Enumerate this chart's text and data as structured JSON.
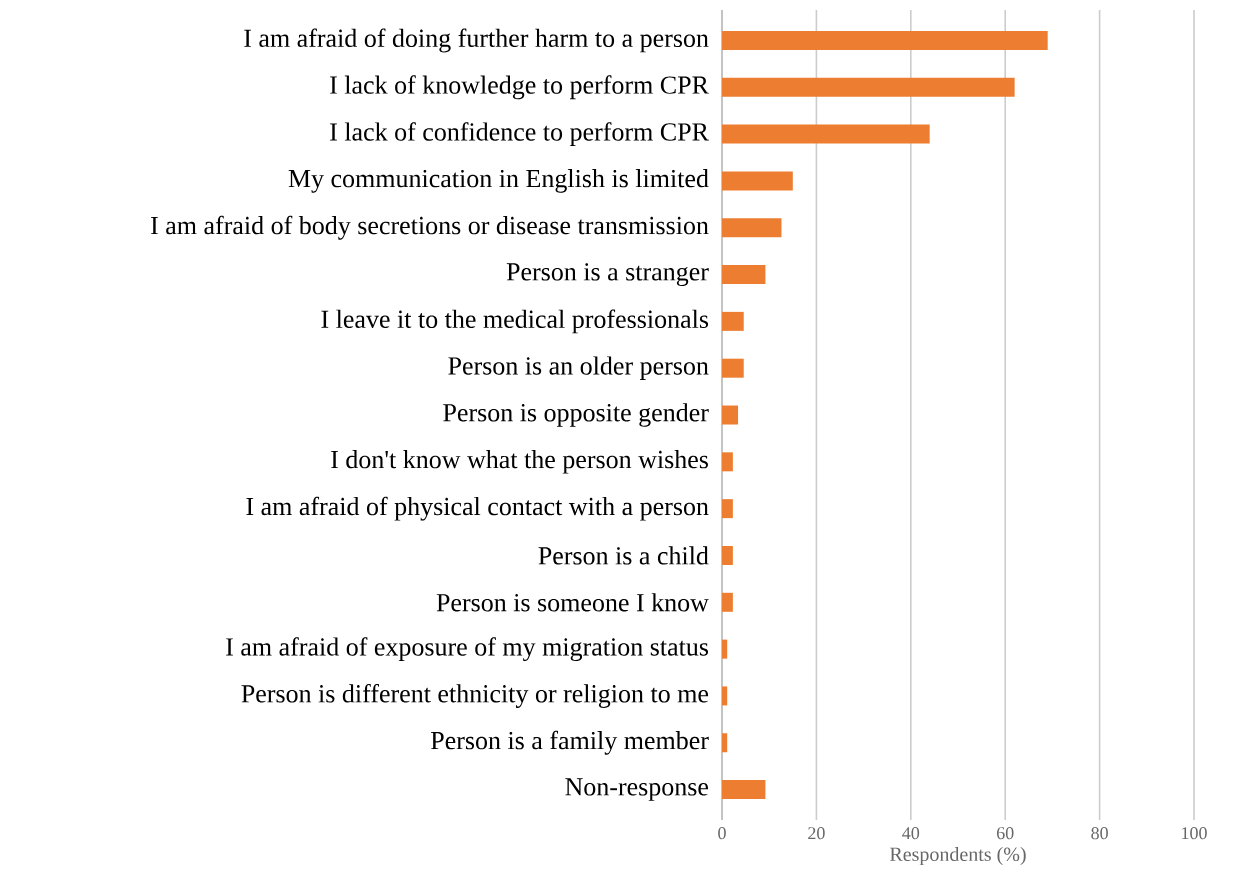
{
  "chart_data": {
    "type": "bar",
    "orientation": "horizontal",
    "xlabel": "Respondents (%)",
    "categories": [
      "I am afraid of doing further harm to a person",
      "I lack of knowledge to perform CPR",
      "I lack of confidence to perform CPR",
      "My communication in English is limited",
      "I am afraid of body secretions or disease transmission",
      "Person is  a stranger",
      "I leave it to the medical professionals",
      "Person is an older person",
      "Person is opposite gender",
      "I don't know what the person wishes",
      "I am afraid of physical contact with a person",
      "Person is a child",
      "Person is someone I know",
      "I am afraid of exposure of my migration status",
      "Person is different ethnicity or religion to me",
      "Person is a family member",
      "Non-response"
    ],
    "values": [
      69,
      62,
      44,
      15,
      12.6,
      9.2,
      4.6,
      4.6,
      3.4,
      2.3,
      2.3,
      2.3,
      2.3,
      1.1,
      1.1,
      1.1,
      9.2
    ],
    "color": "#ed7d31",
    "xlim": [
      0,
      100
    ],
    "xticks": [
      0,
      20,
      40,
      60,
      80,
      100
    ],
    "grid": "x"
  }
}
